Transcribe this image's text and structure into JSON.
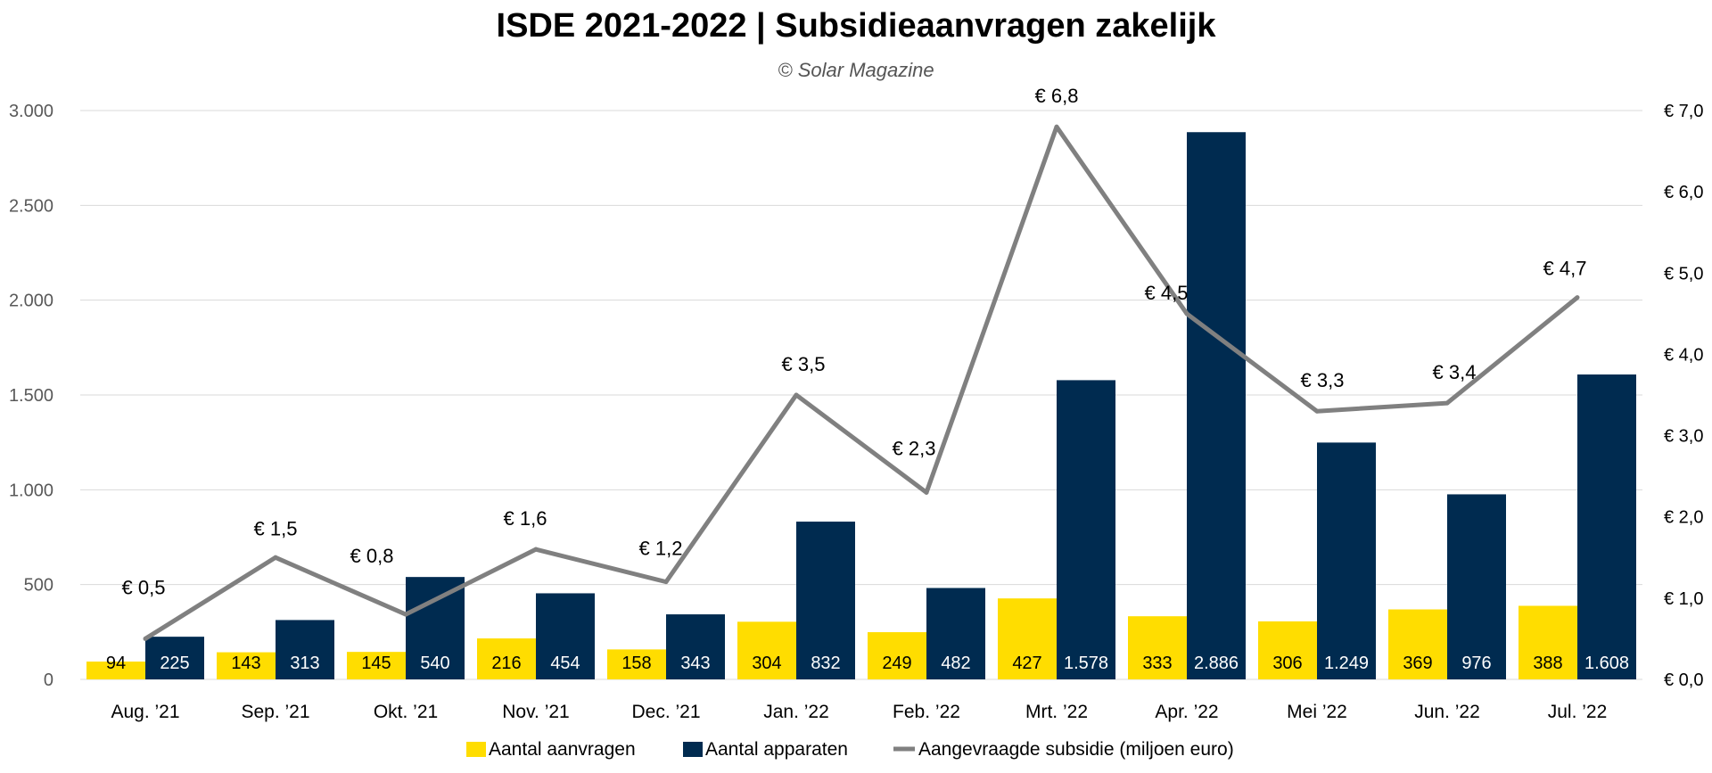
{
  "chart_data": {
    "type": "bar",
    "title": "ISDE 2021-2022 | Subsidieaanvragen zakelijk",
    "subtitle": "© Solar Magazine",
    "categories": [
      "Aug. ’21",
      "Sep. ’21",
      "Okt. ’21",
      "Nov. ’21",
      "Dec. ’21",
      "Jan. ’22",
      "Feb. ’22",
      "Mrt. ’22",
      "Apr. ’22",
      "Mei ’22",
      "Jun. ’22",
      "Jul. ’22"
    ],
    "series": [
      {
        "name": "Aantal aanvragen",
        "type": "bar",
        "axis": "left",
        "color": "#FFDD00",
        "values": [
          94,
          143,
          145,
          216,
          158,
          304,
          249,
          427,
          333,
          306,
          369,
          388
        ],
        "labels": [
          "94",
          "143",
          "145",
          "216",
          "158",
          "304",
          "249",
          "427",
          "333",
          "306",
          "369",
          "388"
        ]
      },
      {
        "name": "Aantal apparaten",
        "type": "bar",
        "axis": "left",
        "color": "#002B50",
        "values": [
          225,
          313,
          540,
          454,
          343,
          832,
          482,
          1578,
          2886,
          1249,
          976,
          1608
        ],
        "labels": [
          "225",
          "313",
          "540",
          "454",
          "343",
          "832",
          "482",
          "1.578",
          "2.886",
          "1.249",
          "976",
          "1.608"
        ]
      },
      {
        "name": "Aangevraagde subsidie (miljoen euro)",
        "type": "line",
        "axis": "right",
        "color": "#808080",
        "values": [
          0.5,
          1.5,
          0.8,
          1.6,
          1.2,
          3.5,
          2.3,
          6.8,
          4.5,
          3.3,
          3.4,
          4.7
        ],
        "labels": [
          "€ 0,5",
          "€ 1,5",
          "€ 0,8",
          "€ 1,6",
          "€ 1,2",
          "€ 3,5",
          "€ 2,3",
          "€ 6,8",
          "€ 4,5",
          "€ 3,3",
          "€ 3,4",
          "€ 4,7"
        ]
      }
    ],
    "y_left": {
      "range": [
        0,
        3000
      ],
      "ticks": [
        0,
        500,
        1000,
        1500,
        2000,
        2500,
        3000
      ],
      "tick_labels": [
        "0",
        "500",
        "1.000",
        "1.500",
        "2.000",
        "2.500",
        "3.000"
      ]
    },
    "y_right": {
      "range": [
        0,
        7
      ],
      "tick_labels": [
        "€ 0,0",
        "€ 1,0",
        "€ 2,0",
        "€ 3,0",
        "€ 4,0",
        "€ 5,0",
        "€ 6,0",
        "€ 7,0"
      ]
    },
    "grid": true,
    "legend_position": "bottom"
  }
}
